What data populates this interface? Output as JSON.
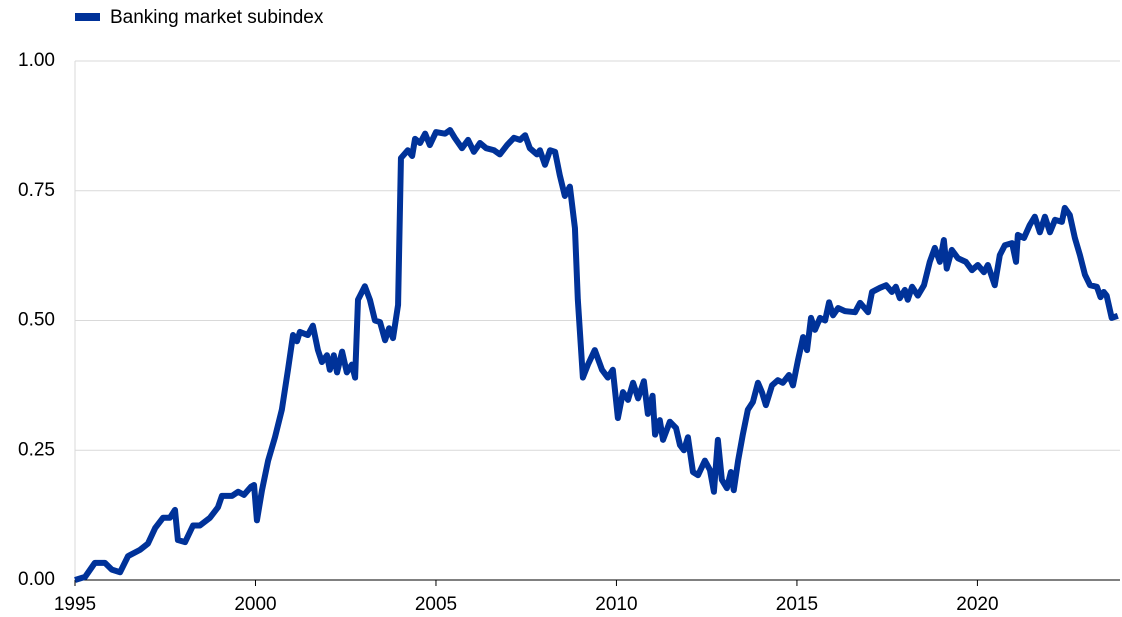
{
  "chart_data": {
    "type": "line",
    "x": [
      1995.0,
      1995.28,
      1995.55,
      1995.83,
      1996.02,
      1996.25,
      1996.47,
      1996.8,
      1997.02,
      1997.22,
      1997.44,
      1997.63,
      1997.77,
      1997.85,
      1998.05,
      1998.27,
      1998.46,
      1998.74,
      1998.96,
      1999.07,
      1999.35,
      1999.52,
      1999.68,
      1999.88,
      1999.96,
      2000.04,
      2000.18,
      2000.35,
      2000.54,
      2000.73,
      2000.9,
      2001.04,
      2001.15,
      2001.23,
      2001.45,
      2001.59,
      2001.73,
      2001.84,
      2001.98,
      2002.06,
      2002.17,
      2002.26,
      2002.4,
      2002.53,
      2002.67,
      2002.76,
      2002.84,
      2003.03,
      2003.17,
      2003.31,
      2003.45,
      2003.59,
      2003.7,
      2003.81,
      2003.95,
      2004.03,
      2004.22,
      2004.34,
      2004.42,
      2004.56,
      2004.7,
      2004.83,
      2005.0,
      2005.25,
      2005.39,
      2005.52,
      2005.72,
      2005.89,
      2006.05,
      2006.22,
      2006.39,
      2006.61,
      2006.77,
      2006.97,
      2007.16,
      2007.33,
      2007.47,
      2007.6,
      2007.8,
      2007.88,
      2008.02,
      2008.16,
      2008.3,
      2008.43,
      2008.57,
      2008.71,
      2008.85,
      2008.93,
      2009.07,
      2009.21,
      2009.4,
      2009.6,
      2009.76,
      2009.9,
      2010.04,
      2010.18,
      2010.32,
      2010.46,
      2010.6,
      2010.76,
      2010.87,
      2011.0,
      2011.07,
      2011.2,
      2011.29,
      2011.48,
      2011.65,
      2011.76,
      2011.87,
      2011.98,
      2012.12,
      2012.26,
      2012.45,
      2012.59,
      2012.7,
      2012.81,
      2012.92,
      2013.06,
      2013.17,
      2013.25,
      2013.37,
      2013.5,
      2013.64,
      2013.78,
      2013.92,
      2014.03,
      2014.14,
      2014.31,
      2014.47,
      2014.61,
      2014.78,
      2014.89,
      2015.03,
      2015.17,
      2015.28,
      2015.39,
      2015.5,
      2015.64,
      2015.78,
      2015.89,
      2016.0,
      2016.14,
      2016.33,
      2016.61,
      2016.75,
      2016.97,
      2017.08,
      2017.3,
      2017.47,
      2017.63,
      2017.74,
      2017.85,
      2017.99,
      2018.07,
      2018.19,
      2018.35,
      2018.52,
      2018.68,
      2018.82,
      2018.96,
      2019.07,
      2019.15,
      2019.29,
      2019.46,
      2019.68,
      2019.85,
      2020.01,
      2020.18,
      2020.29,
      2020.48,
      2020.62,
      2020.76,
      2020.96,
      2021.07,
      2021.12,
      2021.29,
      2021.45,
      2021.59,
      2021.73,
      2021.87,
      2022.01,
      2022.15,
      2022.34,
      2022.42,
      2022.56,
      2022.7,
      2022.84,
      2022.98,
      2023.12,
      2023.31,
      2023.41,
      2023.5,
      2023.58,
      2023.72,
      2023.89
    ],
    "series": [
      {
        "name": "Banking market subindex",
        "color": "#003299",
        "values": [
          0.0,
          0.006,
          0.033,
          0.033,
          0.02,
          0.015,
          0.046,
          0.058,
          0.07,
          0.1,
          0.12,
          0.12,
          0.135,
          0.077,
          0.073,
          0.105,
          0.105,
          0.12,
          0.14,
          0.162,
          0.162,
          0.17,
          0.164,
          0.18,
          0.183,
          0.115,
          0.173,
          0.23,
          0.275,
          0.328,
          0.405,
          0.472,
          0.46,
          0.478,
          0.472,
          0.49,
          0.443,
          0.42,
          0.433,
          0.405,
          0.433,
          0.4,
          0.44,
          0.4,
          0.415,
          0.39,
          0.54,
          0.566,
          0.54,
          0.5,
          0.497,
          0.462,
          0.485,
          0.466,
          0.53,
          0.813,
          0.828,
          0.817,
          0.85,
          0.842,
          0.86,
          0.838,
          0.863,
          0.86,
          0.867,
          0.852,
          0.832,
          0.848,
          0.825,
          0.842,
          0.832,
          0.828,
          0.82,
          0.838,
          0.852,
          0.848,
          0.857,
          0.832,
          0.82,
          0.828,
          0.8,
          0.828,
          0.825,
          0.78,
          0.74,
          0.758,
          0.678,
          0.54,
          0.39,
          0.415,
          0.443,
          0.405,
          0.39,
          0.405,
          0.312,
          0.362,
          0.347,
          0.38,
          0.35,
          0.383,
          0.32,
          0.355,
          0.28,
          0.308,
          0.27,
          0.305,
          0.293,
          0.26,
          0.25,
          0.275,
          0.208,
          0.202,
          0.23,
          0.212,
          0.17,
          0.27,
          0.193,
          0.177,
          0.208,
          0.173,
          0.23,
          0.28,
          0.328,
          0.343,
          0.38,
          0.362,
          0.337,
          0.375,
          0.385,
          0.38,
          0.395,
          0.375,
          0.424,
          0.468,
          0.443,
          0.505,
          0.482,
          0.505,
          0.5,
          0.535,
          0.51,
          0.524,
          0.518,
          0.516,
          0.534,
          0.516,
          0.555,
          0.563,
          0.568,
          0.555,
          0.565,
          0.543,
          0.559,
          0.54,
          0.565,
          0.548,
          0.568,
          0.613,
          0.64,
          0.613,
          0.655,
          0.6,
          0.636,
          0.62,
          0.613,
          0.597,
          0.607,
          0.593,
          0.607,
          0.568,
          0.626,
          0.645,
          0.649,
          0.613,
          0.665,
          0.659,
          0.684,
          0.7,
          0.67,
          0.7,
          0.67,
          0.694,
          0.69,
          0.717,
          0.703,
          0.659,
          0.626,
          0.588,
          0.568,
          0.565,
          0.545,
          0.555,
          0.548,
          0.505,
          0.509
        ]
      }
    ],
    "xlim": [
      1995,
      2023.95
    ],
    "xticks": [
      1995,
      2000,
      2005,
      2010,
      2015,
      2020
    ],
    "ylim": [
      0,
      1
    ],
    "yticks": [
      {
        "value": 0,
        "label": "0.00"
      },
      {
        "value": 0.25,
        "label": "0.25"
      },
      {
        "value": 0.5,
        "label": "0.50"
      },
      {
        "value": 0.75,
        "label": "0.75"
      },
      {
        "value": 1,
        "label": "1.00"
      }
    ],
    "grid": true,
    "legend": "top-left"
  }
}
